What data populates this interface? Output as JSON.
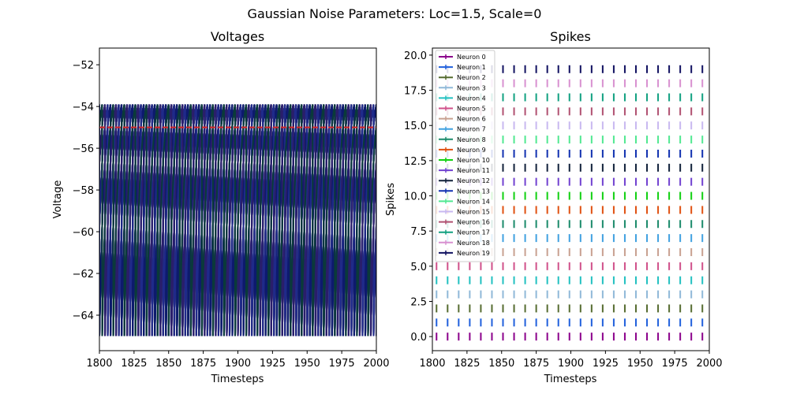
{
  "suptitle": "Gaussian Noise Parameters: Loc=1.5, Scale=0",
  "chart_data": [
    {
      "type": "line",
      "title": "Voltages",
      "xlabel": "Timesteps",
      "ylabel": "Voltage",
      "xlim": [
        1800,
        2000
      ],
      "ylim": [
        -65.7,
        -51.2
      ],
      "xticks": [
        1800,
        1825,
        1850,
        1875,
        1900,
        1925,
        1950,
        1975,
        2000
      ],
      "yticks": [
        -64,
        -62,
        -60,
        -58,
        -56,
        -54,
        -52
      ],
      "threshold": -55,
      "threshold_color": "#d62728",
      "reset_voltage": -65,
      "peak_voltage": -53.9,
      "period_timesteps": 8.0,
      "num_neurons": 20
    },
    {
      "type": "scatter",
      "title": "Spikes",
      "xlabel": "Timesteps",
      "ylabel": "Spikes",
      "xlim": [
        1800,
        2000
      ],
      "ylim": [
        -1.0,
        20.5
      ],
      "xticks": [
        1800,
        1825,
        1850,
        1875,
        1900,
        1925,
        1950,
        1975,
        2000
      ],
      "yticks": [
        0.0,
        2.5,
        5.0,
        7.5,
        10.0,
        12.5,
        15.0,
        17.5,
        20.0
      ],
      "legend_position": "top-left",
      "spike_period": 8.0,
      "spike_x_start": 1803,
      "spike_x_end": 1996,
      "series": [
        {
          "name": "Neuron 0",
          "color": "#8b008b",
          "y": 0
        },
        {
          "name": "Neuron 1",
          "color": "#1f5fdc",
          "y": 1
        },
        {
          "name": "Neuron 2",
          "color": "#556b2f",
          "y": 2
        },
        {
          "name": "Neuron 3",
          "color": "#8fb8d8",
          "y": 3
        },
        {
          "name": "Neuron 4",
          "color": "#20c0c0",
          "y": 4
        },
        {
          "name": "Neuron 5",
          "color": "#d0508a",
          "y": 5
        },
        {
          "name": "Neuron 6",
          "color": "#c8a090",
          "y": 6
        },
        {
          "name": "Neuron 7",
          "color": "#3fa0e0",
          "y": 7
        },
        {
          "name": "Neuron 8",
          "color": "#1a8a6a",
          "y": 8
        },
        {
          "name": "Neuron 9",
          "color": "#e05010",
          "y": 9
        },
        {
          "name": "Neuron 10",
          "color": "#10d010",
          "y": 10
        },
        {
          "name": "Neuron 11",
          "color": "#7040d0",
          "y": 11
        },
        {
          "name": "Neuron 12",
          "color": "#10203a",
          "y": 12
        },
        {
          "name": "Neuron 13",
          "color": "#1030b0",
          "y": 13
        },
        {
          "name": "Neuron 14",
          "color": "#50e890",
          "y": 14
        },
        {
          "name": "Neuron 15",
          "color": "#c8b8f0",
          "y": 15
        },
        {
          "name": "Neuron 16",
          "color": "#b05070",
          "y": 16
        },
        {
          "name": "Neuron 17",
          "color": "#10a080",
          "y": 17
        },
        {
          "name": "Neuron 18",
          "color": "#d890d0",
          "y": 18
        },
        {
          "name": "Neuron 19",
          "color": "#101060",
          "y": 19
        }
      ]
    }
  ]
}
